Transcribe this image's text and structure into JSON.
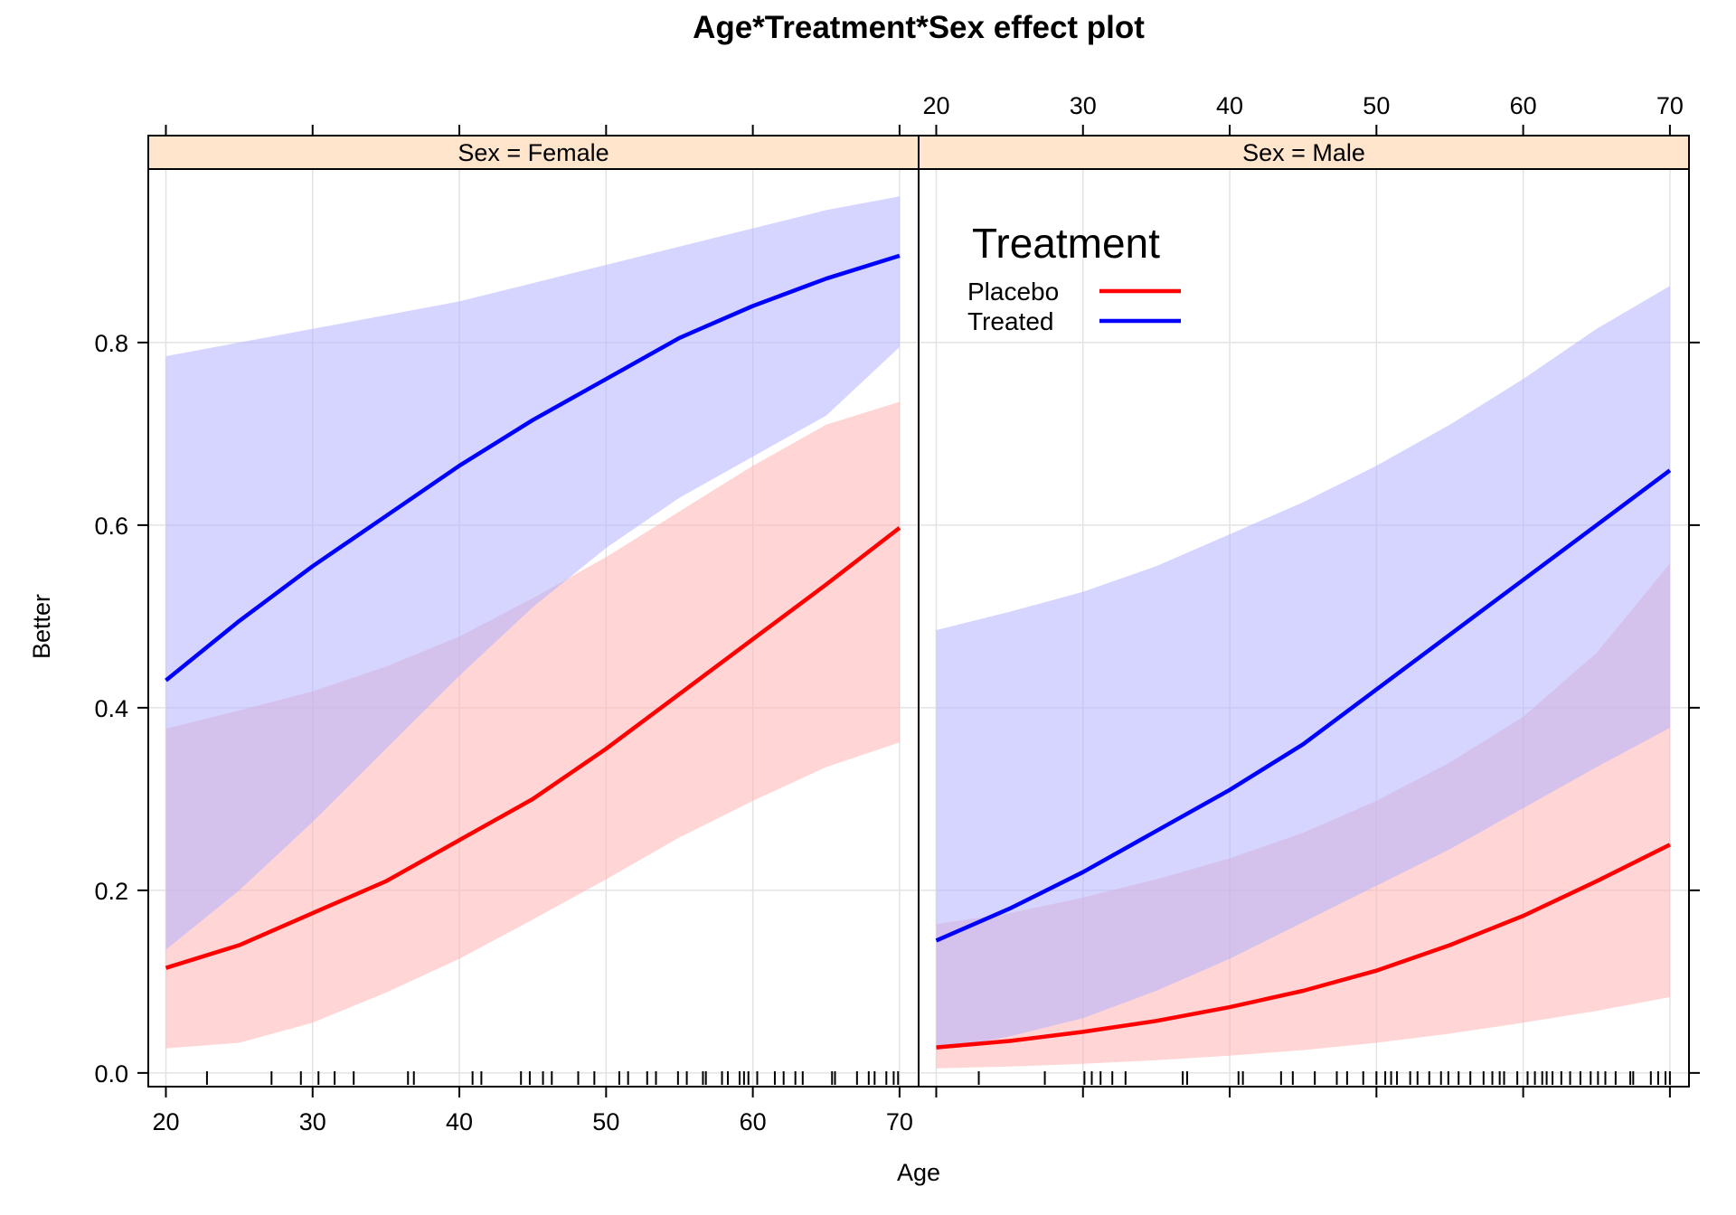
{
  "chart_data": {
    "type": "line",
    "title": "Age*Treatment*Sex effect plot",
    "xlabel": "Age",
    "ylabel": "Better",
    "xlim": [
      18.8,
      71.3
    ],
    "ylim": [
      -0.015,
      0.99
    ],
    "x_ticks": [
      20,
      30,
      40,
      50,
      60,
      70
    ],
    "x_tick_labels": [
      "20",
      "30",
      "40",
      "50",
      "60",
      "70"
    ],
    "y_ticks": [
      0.0,
      0.2,
      0.4,
      0.6,
      0.8
    ],
    "y_tick_labels": [
      "0.0",
      "0.2",
      "0.4",
      "0.6",
      "0.8"
    ],
    "grid": true,
    "legend": {
      "title": "Treatment",
      "placement": "inside Sex = Male panel, top-left",
      "entries": [
        {
          "label": "Placebo",
          "color": "#ff0000"
        },
        {
          "label": "Treated",
          "color": "#0000ff"
        }
      ]
    },
    "colors": {
      "Placebo": "#ff0000",
      "Treated": "#0000ff",
      "Placebo_band": "#ffb3b3",
      "Treated_band": "#b3b3ff",
      "strip": "#ffe5cc"
    },
    "panels": [
      {
        "strip": "Sex = Female",
        "series": [
          {
            "name": "Placebo",
            "x": [
              20,
              25,
              30,
              35,
              40,
              45,
              50,
              55,
              60,
              65,
              70
            ],
            "y": [
              0.115,
              0.14,
              0.175,
              0.21,
              0.255,
              0.3,
              0.355,
              0.415,
              0.475,
              0.535,
              0.597
            ],
            "lower": [
              0.027,
              0.033,
              0.055,
              0.088,
              0.125,
              0.168,
              0.212,
              0.258,
              0.298,
              0.335,
              0.362
            ],
            "upper": [
              0.377,
              0.397,
              0.418,
              0.445,
              0.478,
              0.52,
              0.565,
              0.615,
              0.665,
              0.71,
              0.735
            ]
          },
          {
            "name": "Treated",
            "x": [
              20,
              25,
              30,
              35,
              40,
              45,
              50,
              55,
              60,
              65,
              70
            ],
            "y": [
              0.43,
              0.495,
              0.555,
              0.61,
              0.665,
              0.715,
              0.76,
              0.805,
              0.84,
              0.87,
              0.895
            ],
            "lower": [
              0.135,
              0.2,
              0.275,
              0.355,
              0.435,
              0.51,
              0.575,
              0.63,
              0.675,
              0.72,
              0.795
            ],
            "upper": [
              0.785,
              0.8,
              0.815,
              0.83,
              0.845,
              0.865,
              0.885,
              0.905,
              0.925,
              0.945,
              0.96
            ]
          }
        ],
        "rug": [
          22.8,
          27.2,
          29.2,
          30.4,
          31.5,
          32.8,
          36.5,
          36.9,
          40.9,
          41.5,
          44.2,
          44.8,
          45.7,
          46.3,
          48.1,
          49.2,
          50.9,
          51.5,
          52.8,
          53.4,
          54.9,
          55.5,
          56.6,
          56.8,
          57.9,
          58.3,
          59.1,
          59.4,
          59.7,
          60.3,
          61.5,
          62.1,
          62.9,
          63.4,
          65.4,
          65.6,
          67.1,
          67.9,
          68.3,
          69.1,
          69.6,
          69.9
        ]
      },
      {
        "strip": "Sex = Male",
        "series": [
          {
            "name": "Placebo",
            "x": [
              20,
              25,
              30,
              35,
              40,
              45,
              50,
              55,
              60,
              65,
              70
            ],
            "y": [
              0.028,
              0.035,
              0.045,
              0.057,
              0.072,
              0.09,
              0.112,
              0.14,
              0.172,
              0.21,
              0.25
            ],
            "lower": [
              0.005,
              0.007,
              0.01,
              0.014,
              0.019,
              0.025,
              0.033,
              0.043,
              0.055,
              0.068,
              0.083
            ],
            "upper": [
              0.163,
              0.175,
              0.192,
              0.212,
              0.235,
              0.263,
              0.298,
              0.34,
              0.39,
              0.46,
              0.558
            ]
          },
          {
            "name": "Treated",
            "x": [
              20,
              25,
              30,
              35,
              40,
              45,
              50,
              55,
              60,
              65,
              70
            ],
            "y": [
              0.145,
              0.18,
              0.22,
              0.265,
              0.31,
              0.36,
              0.42,
              0.48,
              0.54,
              0.6,
              0.66
            ],
            "lower": [
              0.025,
              0.04,
              0.06,
              0.09,
              0.125,
              0.165,
              0.205,
              0.245,
              0.29,
              0.335,
              0.378
            ],
            "upper": [
              0.485,
              0.505,
              0.527,
              0.555,
              0.59,
              0.625,
              0.665,
              0.71,
              0.76,
              0.815,
              0.862
            ]
          }
        ],
        "rug": [
          22.9,
          27.4,
          30.1,
          30.6,
          31.2,
          32.0,
          32.9,
          36.8,
          37.1,
          40.6,
          40.9,
          43.5,
          44.3,
          45.8,
          47.3,
          48.0,
          49.1,
          50.0,
          50.6,
          51.0,
          51.4,
          52.3,
          52.8,
          53.6,
          54.4,
          54.9,
          55.6,
          56.4,
          57.3,
          57.9,
          58.4,
          58.7,
          59.6,
          60.3,
          60.8,
          61.3,
          61.6,
          62.0,
          62.6,
          63.2,
          63.9,
          64.6,
          65.1,
          65.6,
          66.3,
          67.3,
          67.5,
          68.7,
          69.2,
          69.7,
          70.0
        ]
      }
    ]
  }
}
